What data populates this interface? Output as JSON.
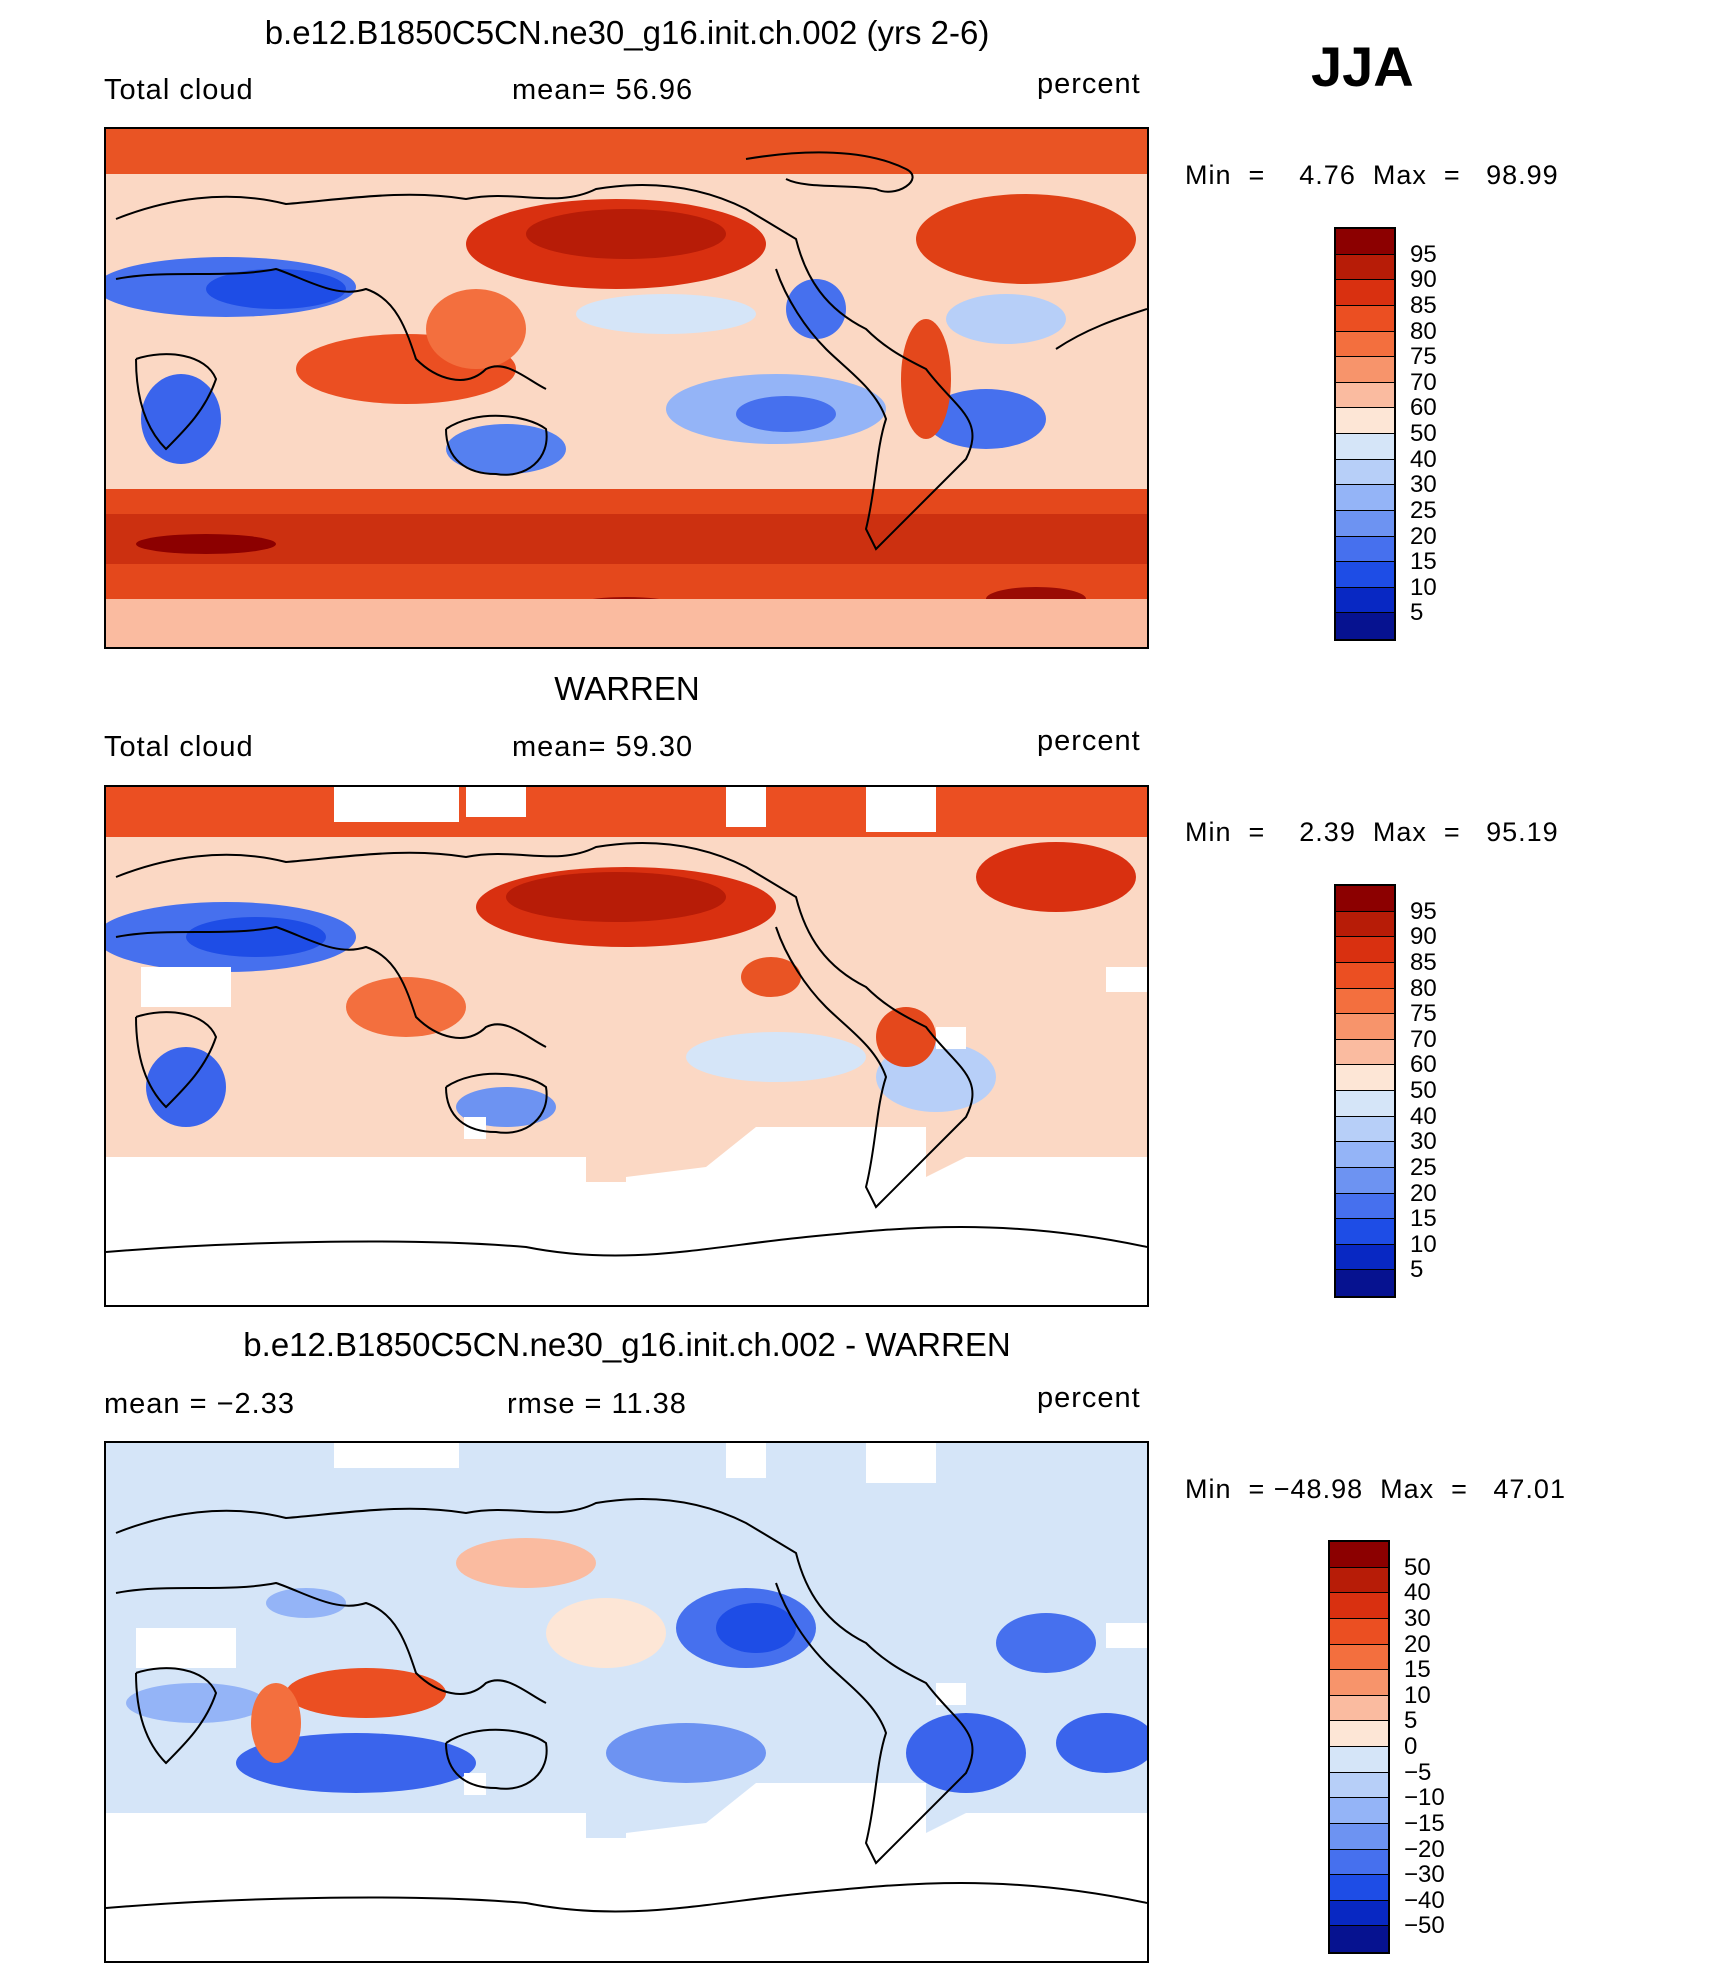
{
  "season": "JJA",
  "panels": [
    {
      "title": "b.e12.B1850C5CN.ne30_g16.init.ch.002 (yrs 2-6)",
      "left": "Total cloud",
      "middle": "mean=   56.96",
      "right": "percent",
      "minmax": "Min  =    4.76  Max  =   98.99",
      "scheme": "abs",
      "mask": false
    },
    {
      "title": "WARREN",
      "left": "Total cloud",
      "middle": "mean=   59.30",
      "right": "percent",
      "minmax": "Min  =    2.39  Max  =   95.19",
      "scheme": "abs",
      "mask": true
    },
    {
      "title": "b.e12.B1850C5CN.ne30_g16.init.ch.002 - WARREN",
      "left": "mean  =   −2.33",
      "middle": "rmse  =   11.38",
      "right": "percent",
      "minmax": "Min  = −48.98  Max  =   47.01",
      "scheme": "diff",
      "mask": true
    }
  ],
  "colorbars": {
    "abs": {
      "labels": [
        "95",
        "90",
        "85",
        "80",
        "75",
        "70",
        "60",
        "50",
        "40",
        "30",
        "25",
        "20",
        "15",
        "10",
        "5"
      ],
      "colors": [
        "#8c0000",
        "#b71c07",
        "#d93010",
        "#eb4f22",
        "#f36f3e",
        "#f7946b",
        "#fabba0",
        "#fde6d6",
        "#d5e5f8",
        "#b7cff8",
        "#94b4f7",
        "#6d93f2",
        "#4670ee",
        "#1e4de6",
        "#0828c3",
        "#061290"
      ]
    },
    "diff": {
      "labels": [
        "50",
        "40",
        "30",
        "20",
        "15",
        "10",
        "5",
        "0",
        "−5",
        "−10",
        "−15",
        "−20",
        "−30",
        "−40",
        "−50"
      ],
      "colors": [
        "#8c0000",
        "#b71c07",
        "#d93010",
        "#eb4f22",
        "#f36f3e",
        "#f7946b",
        "#fabba0",
        "#fde6d6",
        "#d5e5f8",
        "#b7cff8",
        "#94b4f7",
        "#6d93f2",
        "#4670ee",
        "#1e4de6",
        "#0828c3",
        "#061290"
      ]
    }
  }
}
